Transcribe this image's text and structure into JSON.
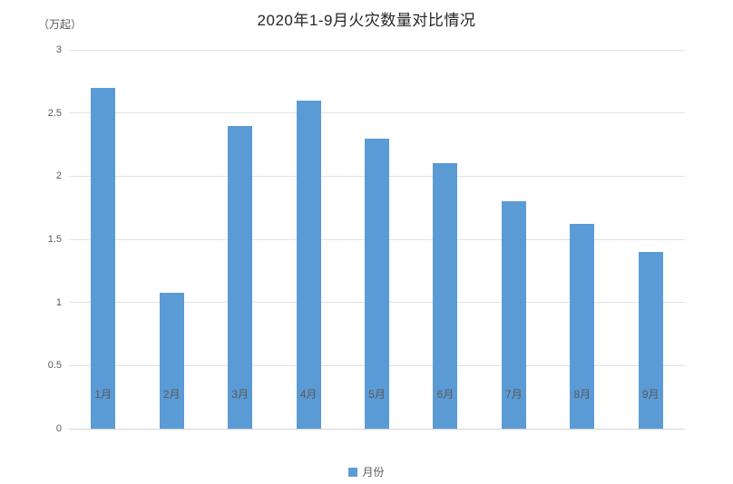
{
  "chart_data": {
    "type": "bar",
    "title": "2020年1-9月火灾数量对比情况",
    "unit_label": "（万起）",
    "xlabel": "",
    "ylabel": "（万起）",
    "categories": [
      "1月",
      "2月",
      "3月",
      "4月",
      "5月",
      "6月",
      "7月",
      "8月",
      "9月"
    ],
    "values": [
      2.7,
      1.08,
      2.4,
      2.6,
      2.3,
      2.1,
      1.8,
      1.62,
      1.4
    ],
    "series_name": "月份",
    "ylim": [
      0,
      3
    ],
    "ytick_step": 0.5,
    "yticks": [
      "0",
      "0.5",
      "1",
      "1.5",
      "2",
      "2.5",
      "3"
    ],
    "grid": true,
    "legend_position": "bottom"
  },
  "legend": {
    "label": "月份"
  },
  "colors": {
    "bar": "#5b9bd5",
    "gridline": "#e2e2e2",
    "axis_line": "#d4d4d4",
    "tick_text": "#595959",
    "title_text": "#262626"
  }
}
